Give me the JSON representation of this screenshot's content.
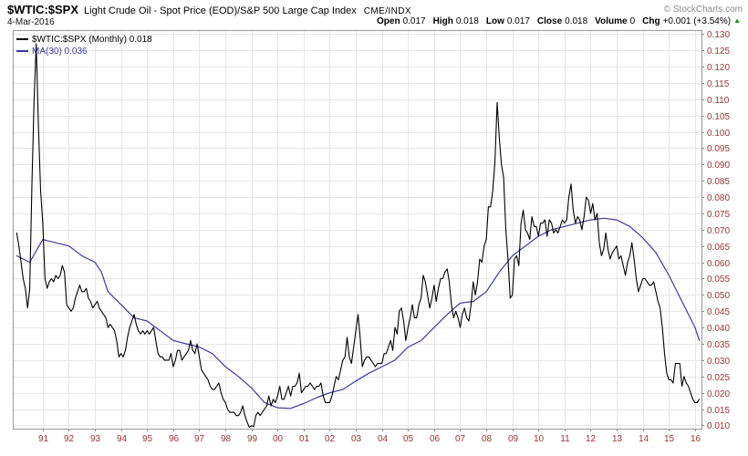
{
  "header": {
    "symbol": "$WTIC:$SPX",
    "description": "Light Crude Oil - Spot Price (EOD)/S&P 500 Large Cap Index",
    "exchange": "CME/INDX",
    "copyright": "© StockCharts.com",
    "date": "4-Mar-2016",
    "quote": [
      {
        "label": "Open",
        "value": "0.017"
      },
      {
        "label": "High",
        "value": "0.018"
      },
      {
        "label": "Low",
        "value": "0.017"
      },
      {
        "label": "Close",
        "value": "0.018"
      },
      {
        "label": "Volume",
        "value": "0"
      },
      {
        "label": "Chg",
        "value": "+0.001 (+3.54%)"
      }
    ],
    "change_direction": "up"
  },
  "icons": {
    "up_arrow": "▲"
  },
  "legend": [
    {
      "label": "$WTIC:$SPX (Monthly) 0.018",
      "color": "#000000"
    },
    {
      "label": "MA(30) 0.036",
      "color": "#3a3a9e"
    }
  ],
  "colors": {
    "grid": "#e6e6e6",
    "plot_border": "#999999",
    "axis_text": "#993333",
    "axis_tick": "#888888",
    "up_green": "#009900"
  },
  "chart_data": {
    "type": "line",
    "title": "$WTIC:$SPX Light Crude Oil - Spot Price (EOD)/S&P 500 Large Cap Index (Monthly)",
    "xlabel": "",
    "ylabel": "",
    "grid": true,
    "legend_position": "top-left",
    "xlim": [
      1989.85,
      2016.25
    ],
    "ylim": [
      0.009,
      0.1312
    ],
    "x_tick_years": [
      1991,
      1992,
      1993,
      1994,
      1995,
      1996,
      1997,
      1998,
      1999,
      2000,
      2001,
      2002,
      2003,
      2004,
      2005,
      2006,
      2007,
      2008,
      2009,
      2010,
      2011,
      2012,
      2013,
      2014,
      2015,
      2016
    ],
    "x_tick_labels": [
      "91",
      "92",
      "93",
      "94",
      "95",
      "96",
      "97",
      "98",
      "99",
      "00",
      "01",
      "02",
      "03",
      "04",
      "05",
      "06",
      "07",
      "08",
      "09",
      "10",
      "11",
      "12",
      "13",
      "14",
      "15",
      "16"
    ],
    "y_ticks": [
      0.01,
      0.015,
      0.02,
      0.025,
      0.03,
      0.035,
      0.04,
      0.045,
      0.05,
      0.055,
      0.06,
      0.065,
      0.07,
      0.075,
      0.08,
      0.085,
      0.09,
      0.095,
      0.1,
      0.105,
      0.11,
      0.115,
      0.12,
      0.125,
      0.13
    ],
    "series": [
      {
        "name": "$WTIC:$SPX (Monthly)",
        "color": "#000000",
        "width": 1.1,
        "x_start": 1990.0,
        "x_step": 0.0833333,
        "values": [
          0.069,
          0.065,
          0.06,
          0.055,
          0.052,
          0.046,
          0.052,
          0.084,
          0.11,
          0.127,
          0.102,
          0.082,
          0.072,
          0.055,
          0.052,
          0.054,
          0.055,
          0.054,
          0.056,
          0.055,
          0.056,
          0.059,
          0.057,
          0.047,
          0.046,
          0.045,
          0.046,
          0.049,
          0.051,
          0.053,
          0.051,
          0.051,
          0.052,
          0.049,
          0.048,
          0.046,
          0.047,
          0.048,
          0.046,
          0.045,
          0.044,
          0.043,
          0.04,
          0.041,
          0.04,
          0.039,
          0.036,
          0.031,
          0.032,
          0.031,
          0.033,
          0.037,
          0.04,
          0.042,
          0.044,
          0.041,
          0.039,
          0.038,
          0.039,
          0.038,
          0.039,
          0.038,
          0.039,
          0.04,
          0.036,
          0.032,
          0.031,
          0.031,
          0.03,
          0.03,
          0.03,
          0.032,
          0.028,
          0.03,
          0.033,
          0.033,
          0.03,
          0.031,
          0.032,
          0.033,
          0.036,
          0.033,
          0.032,
          0.035,
          0.031,
          0.027,
          0.026,
          0.025,
          0.024,
          0.022,
          0.021,
          0.021,
          0.022,
          0.023,
          0.02,
          0.018,
          0.017,
          0.015,
          0.014,
          0.014,
          0.014,
          0.013,
          0.013,
          0.014,
          0.016,
          0.013,
          0.011,
          0.0094,
          0.0099,
          0.0096,
          0.013,
          0.014,
          0.013,
          0.014,
          0.015,
          0.016,
          0.019,
          0.016,
          0.018,
          0.017,
          0.019,
          0.022,
          0.018,
          0.018,
          0.02,
          0.022,
          0.019,
          0.022,
          0.022,
          0.023,
          0.026,
          0.02,
          0.021,
          0.022,
          0.022,
          0.023,
          0.022,
          0.021,
          0.022,
          0.022,
          0.023,
          0.019,
          0.017,
          0.017,
          0.017,
          0.019,
          0.022,
          0.025,
          0.024,
          0.027,
          0.03,
          0.031,
          0.037,
          0.031,
          0.029,
          0.034,
          0.039,
          0.044,
          0.037,
          0.028,
          0.03,
          0.031,
          0.031,
          0.03,
          0.029,
          0.028,
          0.029,
          0.029,
          0.029,
          0.032,
          0.032,
          0.034,
          0.036,
          0.033,
          0.04,
          0.038,
          0.045,
          0.046,
          0.042,
          0.036,
          0.04,
          0.043,
          0.047,
          0.043,
          0.043,
          0.047,
          0.049,
          0.056,
          0.054,
          0.05,
          0.046,
          0.049,
          0.053,
          0.048,
          0.052,
          0.055,
          0.055,
          0.057,
          0.058,
          0.054,
          0.047,
          0.043,
          0.045,
          0.043,
          0.04,
          0.044,
          0.046,
          0.043,
          0.042,
          0.047,
          0.054,
          0.05,
          0.054,
          0.061,
          0.06,
          0.065,
          0.067,
          0.077,
          0.077,
          0.082,
          0.091,
          0.109,
          0.098,
          0.09,
          0.086,
          0.07,
          0.061,
          0.049,
          0.05,
          0.061,
          0.062,
          0.059,
          0.072,
          0.076,
          0.07,
          0.069,
          0.067,
          0.074,
          0.071,
          0.071,
          0.068,
          0.072,
          0.072,
          0.073,
          0.068,
          0.073,
          0.072,
          0.069,
          0.07,
          0.069,
          0.071,
          0.073,
          0.072,
          0.073,
          0.08,
          0.084,
          0.076,
          0.072,
          0.074,
          0.073,
          0.07,
          0.074,
          0.08,
          0.079,
          0.075,
          0.078,
          0.073,
          0.075,
          0.066,
          0.062,
          0.064,
          0.069,
          0.064,
          0.061,
          0.063,
          0.064,
          0.065,
          0.061,
          0.062,
          0.059,
          0.056,
          0.06,
          0.062,
          0.066,
          0.061,
          0.055,
          0.051,
          0.053,
          0.055,
          0.055,
          0.054,
          0.053,
          0.053,
          0.054,
          0.051,
          0.048,
          0.046,
          0.04,
          0.032,
          0.026,
          0.024,
          0.024,
          0.023,
          0.029,
          0.029,
          0.029,
          0.022,
          0.025,
          0.023,
          0.022,
          0.02,
          0.018,
          0.017,
          0.017,
          0.018
        ]
      },
      {
        "name": "MA(30)",
        "color": "#3a3a9e",
        "width": 1.2,
        "x": [
          1990.0,
          1990.5,
          1991.0,
          1991.5,
          1992.0,
          1992.5,
          1993.0,
          1993.25,
          1993.5,
          1994.0,
          1994.5,
          1995.0,
          1995.5,
          1996.0,
          1996.5,
          1997.0,
          1997.5,
          1998.0,
          1998.5,
          1999.0,
          1999.5,
          2000.0,
          2000.5,
          2001.0,
          2001.5,
          2002.0,
          2002.5,
          2003.0,
          2003.5,
          2004.0,
          2004.5,
          2005.0,
          2005.5,
          2006.0,
          2006.5,
          2007.0,
          2007.5,
          2008.0,
          2008.5,
          2009.0,
          2009.5,
          2010.0,
          2010.5,
          2011.0,
          2011.5,
          2012.0,
          2012.5,
          2013.0,
          2013.5,
          2014.0,
          2014.5,
          2015.0,
          2015.5,
          2016.0,
          2016.17
        ],
        "y": [
          0.062,
          0.06,
          0.067,
          0.066,
          0.065,
          0.062,
          0.06,
          0.057,
          0.051,
          0.047,
          0.043,
          0.042,
          0.039,
          0.036,
          0.035,
          0.034,
          0.032,
          0.028,
          0.025,
          0.0215,
          0.017,
          0.0154,
          0.0152,
          0.0167,
          0.0185,
          0.02,
          0.021,
          0.0236,
          0.026,
          0.028,
          0.03,
          0.034,
          0.036,
          0.04,
          0.044,
          0.0475,
          0.048,
          0.051,
          0.057,
          0.062,
          0.065,
          0.068,
          0.07,
          0.071,
          0.072,
          0.073,
          0.0735,
          0.073,
          0.071,
          0.0675,
          0.063,
          0.056,
          0.048,
          0.04,
          0.036
        ]
      }
    ]
  }
}
